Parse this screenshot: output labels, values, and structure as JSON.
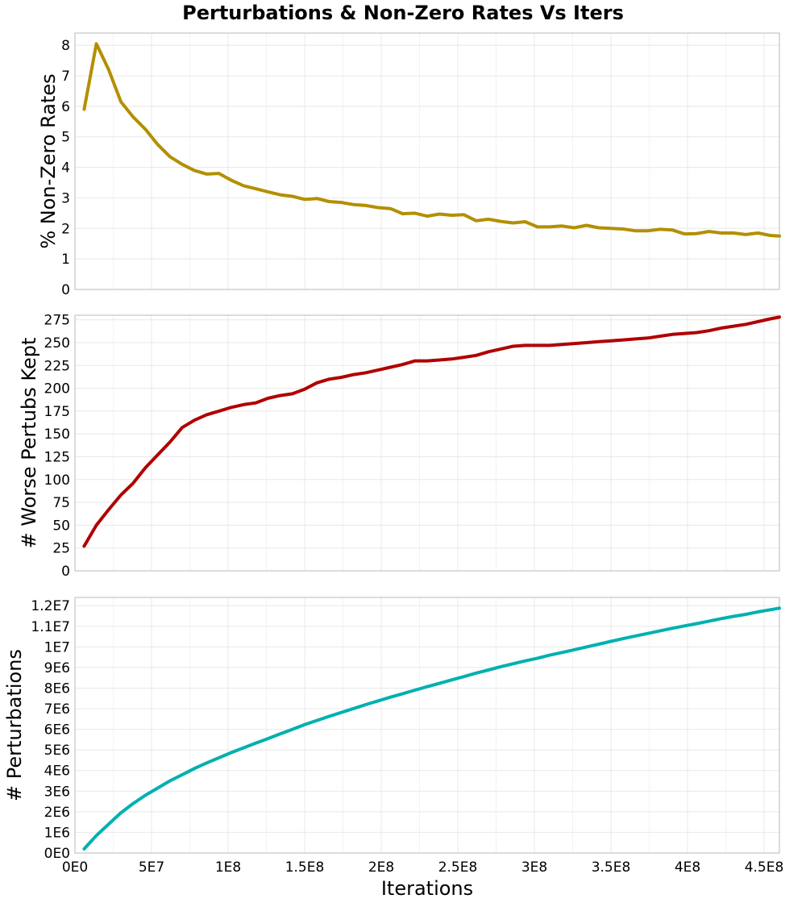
{
  "title": "Perturbations & Non-Zero Rates Vs Iters",
  "xlabel": "Iterations",
  "x_tick_labels": [
    "0E0",
    "5E7",
    "1E8",
    "1.5E8",
    "2E8",
    "2.5E8",
    "3E8",
    "3.5E8",
    "4E8",
    "4.5E8"
  ],
  "chart_data": {
    "type": "line",
    "title": "Perturbations & Non-Zero Rates Vs Iters",
    "xlabel": "Iterations",
    "xlim": [
      0,
      460000000
    ],
    "x_ticks": [
      0,
      50000000,
      100000000,
      150000000,
      200000000,
      250000000,
      300000000,
      350000000,
      400000000,
      450000000
    ],
    "grid": true,
    "x": [
      6000000,
      14000000,
      22000000,
      30000000,
      38000000,
      46000000,
      54000000,
      62000000,
      70000000,
      78000000,
      86000000,
      94000000,
      102000000,
      110000000,
      118000000,
      126000000,
      134000000,
      142000000,
      150000000,
      158000000,
      166000000,
      174000000,
      182000000,
      190000000,
      198000000,
      206000000,
      214000000,
      222000000,
      230000000,
      238000000,
      246000000,
      254000000,
      262000000,
      270000000,
      278000000,
      286000000,
      294000000,
      302000000,
      310000000,
      318000000,
      326000000,
      334000000,
      342000000,
      350000000,
      358000000,
      366000000,
      374000000,
      382000000,
      390000000,
      398000000,
      406000000,
      414000000,
      422000000,
      430000000,
      438000000,
      446000000,
      454000000,
      460000000
    ],
    "panels": [
      {
        "ylabel": "% Non-Zero Rates",
        "ylim": [
          0,
          8.4
        ],
        "y_ticks": [
          0,
          1,
          2,
          3,
          4,
          5,
          6,
          7,
          8
        ],
        "y_tick_labels": [
          "0",
          "1",
          "2",
          "3",
          "4",
          "5",
          "6",
          "7",
          "8"
        ],
        "series": [
          {
            "color": "#b38f00",
            "values": [
              5.9,
              8.05,
              7.2,
              6.15,
              5.65,
              5.25,
              4.75,
              4.35,
              4.1,
              3.9,
              3.78,
              3.8,
              3.58,
              3.4,
              3.3,
              3.2,
              3.1,
              3.05,
              2.95,
              2.98,
              2.88,
              2.85,
              2.78,
              2.75,
              2.68,
              2.65,
              2.48,
              2.5,
              2.4,
              2.47,
              2.43,
              2.45,
              2.25,
              2.3,
              2.23,
              2.18,
              2.22,
              2.05,
              2.05,
              2.08,
              2.02,
              2.1,
              2.02,
              2.0,
              1.98,
              1.92,
              1.92,
              1.97,
              1.95,
              1.82,
              1.83,
              1.9,
              1.85,
              1.85,
              1.8,
              1.85,
              1.77,
              1.75
            ]
          }
        ]
      },
      {
        "ylabel": "# Worse Pertubs Kept",
        "ylim": [
          0,
          280
        ],
        "y_ticks": [
          0,
          25,
          50,
          75,
          100,
          125,
          150,
          175,
          200,
          225,
          250,
          275
        ],
        "y_tick_labels": [
          "0",
          "25",
          "50",
          "75",
          "100",
          "125",
          "150",
          "175",
          "200",
          "225",
          "250",
          "275"
        ],
        "series": [
          {
            "color": "#b00000",
            "values": [
              27,
              50,
              67,
              83,
              96,
              113,
              127,
              141,
              157,
              165,
              171,
              175,
              179,
              182,
              184,
              189,
              192,
              194,
              199,
              206,
              210,
              212,
              215,
              217,
              220,
              223,
              226,
              230,
              230,
              231,
              232,
              234,
              236,
              240,
              243,
              246,
              247,
              247,
              247,
              248,
              249,
              250,
              251,
              252,
              253,
              254,
              255,
              257,
              259,
              260,
              261,
              263,
              266,
              268,
              270,
              273,
              276,
              278
            ]
          }
        ]
      },
      {
        "ylabel": "# Perturbations",
        "ylim": [
          0,
          12400000
        ],
        "y_ticks": [
          0,
          1000000,
          2000000,
          3000000,
          4000000,
          5000000,
          6000000,
          7000000,
          8000000,
          9000000,
          10000000,
          11000000,
          12000000
        ],
        "y_tick_labels": [
          "0E0",
          "1E6",
          "2E6",
          "3E6",
          "4E6",
          "5E6",
          "6E6",
          "7E6",
          "8E6",
          "9E6",
          "1E7",
          "1.1E7",
          "1.2E7"
        ],
        "series": [
          {
            "color": "#00b0b0",
            "values": [
              200000,
              850000,
              1400000,
              1950000,
              2400000,
              2800000,
              3150000,
              3500000,
              3800000,
              4100000,
              4370000,
              4620000,
              4870000,
              5100000,
              5330000,
              5550000,
              5780000,
              6000000,
              6230000,
              6430000,
              6630000,
              6820000,
              7010000,
              7200000,
              7380000,
              7560000,
              7730000,
              7900000,
              8070000,
              8230000,
              8400000,
              8560000,
              8730000,
              8880000,
              9040000,
              9180000,
              9320000,
              9450000,
              9600000,
              9730000,
              9860000,
              10000000,
              10130000,
              10270000,
              10400000,
              10530000,
              10650000,
              10780000,
              10900000,
              11020000,
              11130000,
              11250000,
              11370000,
              11480000,
              11580000,
              11700000,
              11800000,
              11880000
            ]
          }
        ]
      }
    ]
  }
}
